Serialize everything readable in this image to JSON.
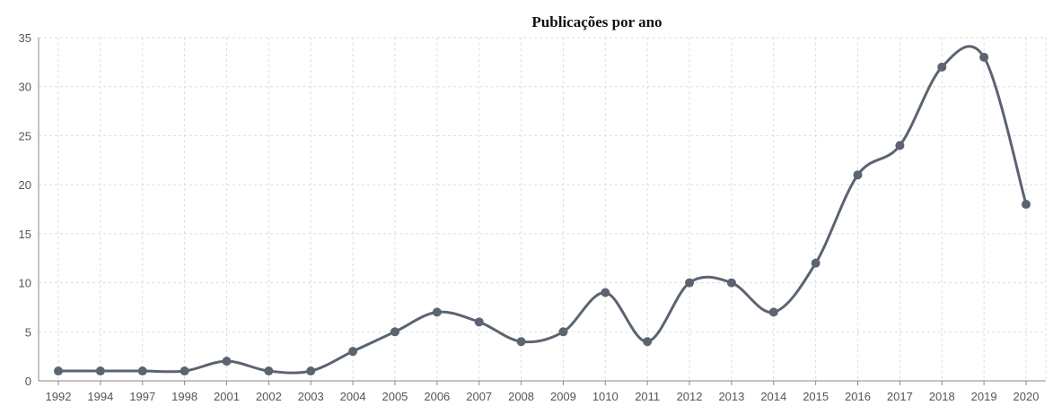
{
  "chart_data": {
    "type": "line",
    "title": "Publicações por ano",
    "xlabel": "",
    "ylabel": "",
    "categories": [
      "1992",
      "1994",
      "1997",
      "1998",
      "2001",
      "2002",
      "2003",
      "2004",
      "2005",
      "2006",
      "2007",
      "2008",
      "2009",
      "1010",
      "2011",
      "2012",
      "2013",
      "2014",
      "2015",
      "2016",
      "2017",
      "2018",
      "2019",
      "2020"
    ],
    "series": [
      {
        "values": [
          1,
          1,
          1,
          1,
          2,
          1,
          1,
          3,
          5,
          7,
          6,
          4,
          5,
          9,
          4,
          10,
          10,
          7,
          12,
          21,
          24,
          32,
          33,
          18
        ]
      }
    ],
    "ylim": [
      0,
      35
    ],
    "yticks": [
      0,
      5,
      10,
      15,
      20,
      25,
      30,
      35
    ],
    "grid": true,
    "smooth": true,
    "line_color": "#5b6470"
  }
}
